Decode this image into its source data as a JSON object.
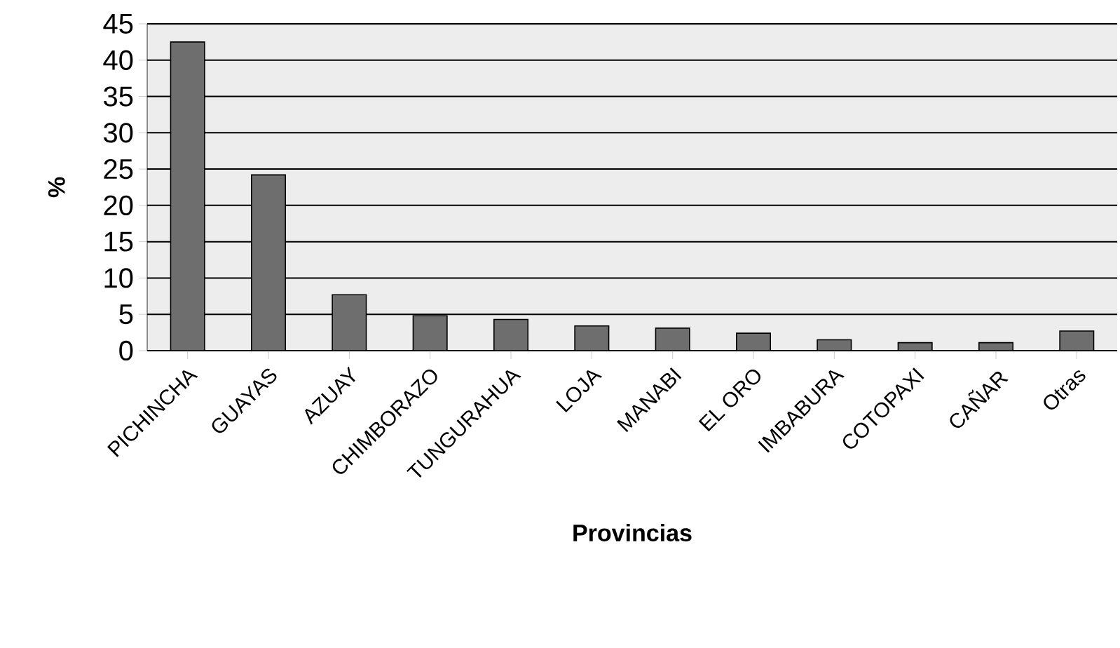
{
  "chart_data": {
    "type": "bar",
    "xlabel": "Provincias",
    "ylabel": "%",
    "categories": [
      "PICHINCHA",
      "GUAYAS",
      "AZUAY",
      "CHIMBORAZO",
      "TUNGURAHUA",
      "LOJA",
      "MANABI",
      "EL ORO",
      "IMBABURA",
      "COTOPAXI",
      "CAÑAR",
      "Otras"
    ],
    "values": [
      42.5,
      24.2,
      7.7,
      4.8,
      4.3,
      3.4,
      3.1,
      2.4,
      1.5,
      1.1,
      1.1,
      2.7
    ],
    "color": "#6e6e6e",
    "ylim": [
      0,
      45
    ],
    "yticks": [
      0,
      5,
      10,
      15,
      20,
      25,
      30,
      35,
      40,
      45
    ],
    "grid": "y"
  }
}
